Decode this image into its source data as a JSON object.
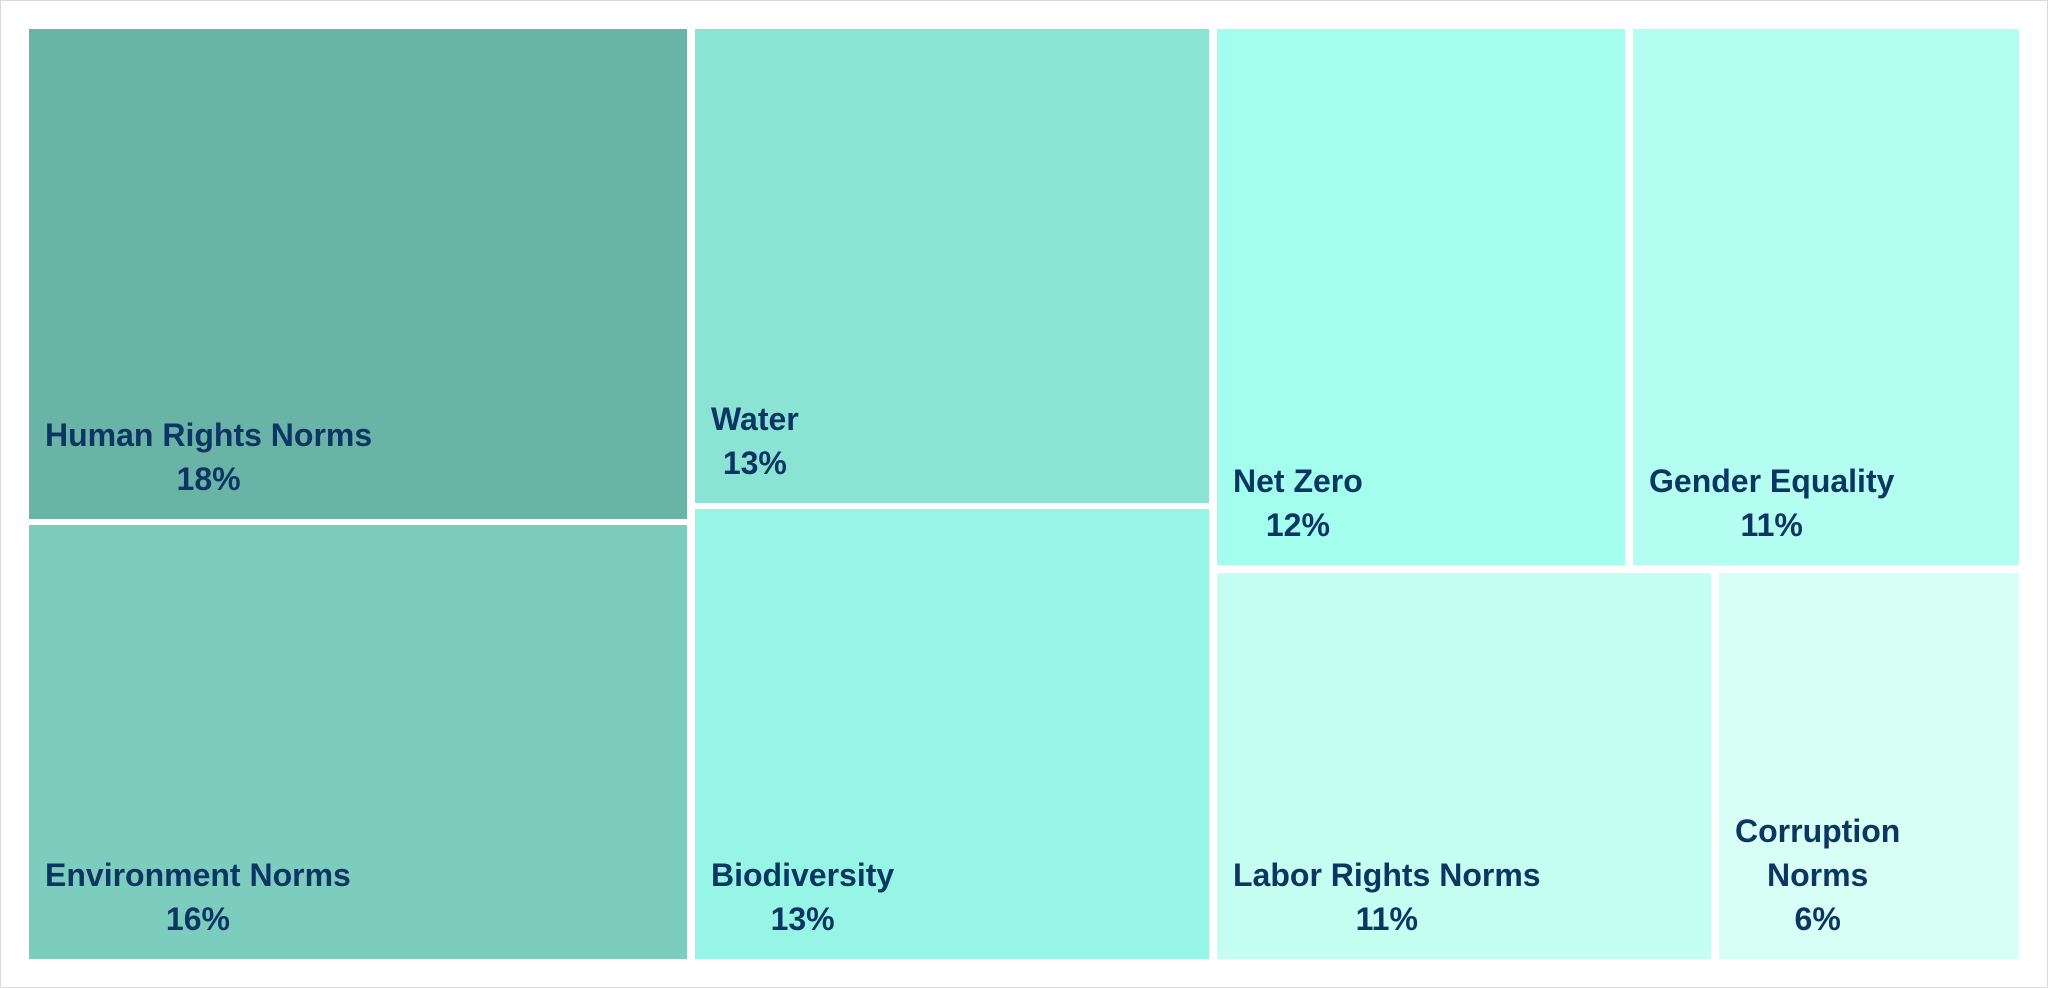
{
  "chart_data": {
    "type": "treemap",
    "title": "",
    "items": [
      {
        "label": "Human Rights Norms",
        "value": 18,
        "display": "18%",
        "color": "#6ab3a7"
      },
      {
        "label": "Environment Norms",
        "value": 16,
        "display": "16%",
        "color": "#7dcdbf"
      },
      {
        "label": "Water",
        "value": 13,
        "display": "13%",
        "color": "#8be3d4"
      },
      {
        "label": "Biodiversity",
        "value": 13,
        "display": "13%",
        "color": "#96f5e4"
      },
      {
        "label": "Net Zero",
        "value": 12,
        "display": "12%",
        "color": "#a3feee"
      },
      {
        "label": "Gender Equality",
        "value": 11,
        "display": "11%",
        "color": "#b3fef1"
      },
      {
        "label": "Labor Rights Norms",
        "value": 11,
        "display": "11%",
        "color": "#c4fff2"
      },
      {
        "label": "Corruption\nNorms",
        "value": 6,
        "display": "6%",
        "color": "#d7fff6"
      }
    ]
  }
}
